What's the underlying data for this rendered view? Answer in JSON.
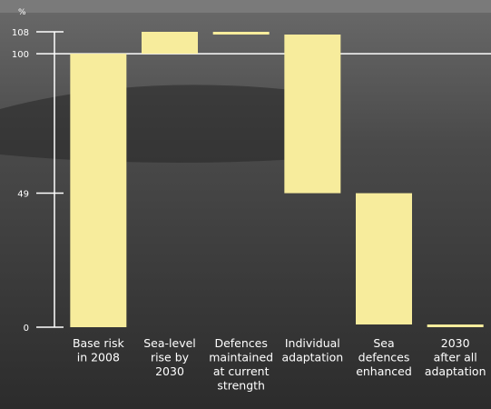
{
  "chart_data": {
    "type": "waterfall",
    "y_unit": "%",
    "categories": [
      [
        "Base risk",
        "in 2008"
      ],
      [
        "Sea-level",
        "rise by",
        "2030"
      ],
      [
        "Defences",
        "maintained",
        "at current",
        "strength"
      ],
      [
        "Individual",
        "adaptation"
      ],
      [
        "Sea",
        "defences",
        "enhanced"
      ],
      [
        "2030",
        "after all",
        "adaptation"
      ]
    ],
    "values": [
      100,
      8,
      -1,
      -58,
      -48,
      1
    ],
    "kinds": [
      "total",
      "delta",
      "delta",
      "delta",
      "delta",
      "total"
    ],
    "color": "#f7ec9c",
    "ylim": [
      0,
      108
    ],
    "yticks": [
      0,
      49,
      100,
      108
    ],
    "reference_tick": 2
  }
}
